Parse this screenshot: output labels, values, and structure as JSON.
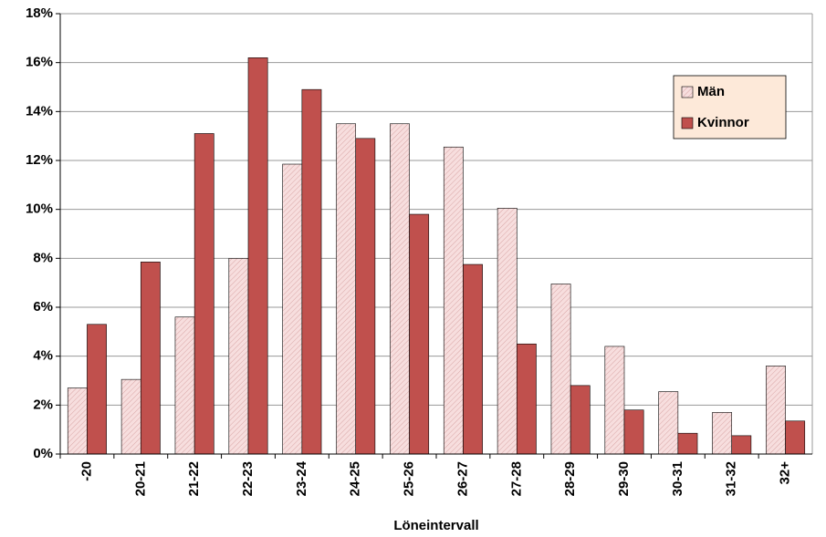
{
  "chart_data": {
    "type": "bar",
    "x_label": "Löneintervall",
    "categories": [
      "-20",
      "20-21",
      "21-22",
      "22-23",
      "23-24",
      "24-25",
      "25-26",
      "26-27",
      "27-28",
      "28-29",
      "29-30",
      "30-31",
      "31-32",
      "32+"
    ],
    "series": [
      {
        "name": "Män",
        "color": "#f7dede",
        "values": [
          2.7,
          3.05,
          5.6,
          8.0,
          11.85,
          13.5,
          13.5,
          12.55,
          10.05,
          6.95,
          4.4,
          2.55,
          1.7,
          3.6
        ]
      },
      {
        "name": "Kvinnor",
        "color": "#c0504d",
        "values": [
          5.3,
          7.85,
          13.1,
          16.2,
          14.9,
          12.9,
          9.8,
          7.75,
          4.5,
          2.8,
          1.8,
          0.85,
          0.75,
          1.35
        ]
      }
    ],
    "ylim": [
      0,
      18
    ],
    "yticks": [
      {
        "value": 0,
        "label": "0%"
      },
      {
        "value": 2,
        "label": "2%"
      },
      {
        "value": 4,
        "label": "4%"
      },
      {
        "value": 6,
        "label": "6%"
      },
      {
        "value": 8,
        "label": "8%"
      },
      {
        "value": 10,
        "label": "10%"
      },
      {
        "value": 12,
        "label": "12%"
      },
      {
        "value": 14,
        "label": "14%"
      },
      {
        "value": 16,
        "label": "16%"
      },
      {
        "value": 18,
        "label": "18%"
      }
    ],
    "grid": true,
    "legend": "upper right"
  }
}
